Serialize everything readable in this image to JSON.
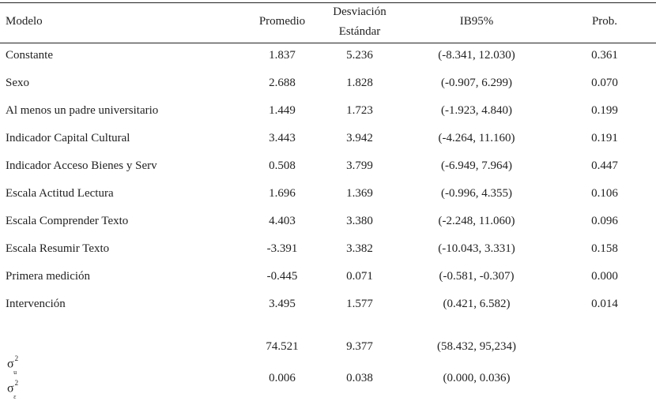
{
  "table": {
    "headers": {
      "model": "Modelo",
      "mean": "Promedio",
      "sd_line1": "Desviación",
      "sd_line2": "Estándar",
      "ci": "IB95%",
      "prob": "Prob."
    },
    "rows": [
      {
        "label": "Constante",
        "mean": "1.837",
        "sd": "5.236",
        "ci": "(-8.341, 12.030)",
        "prob": "0.361"
      },
      {
        "label": "Sexo",
        "mean": "2.688",
        "sd": "1.828",
        "ci": "(-0.907, 6.299)",
        "prob": "0.070"
      },
      {
        "label": "Al menos un padre universitario",
        "mean": "1.449",
        "sd": "1.723",
        "ci": "(-1.923, 4.840)",
        "prob": "0.199"
      },
      {
        "label": "Indicador Capital Cultural",
        "mean": "3.443",
        "sd": "3.942",
        "ci": "(-4.264, 11.160)",
        "prob": "0.191"
      },
      {
        "label": "Indicador Acceso Bienes y Serv",
        "mean": "0.508",
        "sd": "3.799",
        "ci": "(-6.949, 7.964)",
        "prob": "0.447"
      },
      {
        "label": "Escala Actitud Lectura",
        "mean": "1.696",
        "sd": "1.369",
        "ci": "(-0.996, 4.355)",
        "prob": "0.106"
      },
      {
        "label": "Escala Comprender Texto",
        "mean": "4.403",
        "sd": "3.380",
        "ci": "(-2.248, 11.060)",
        "prob": "0.096"
      },
      {
        "label": "Escala Resumir Texto",
        "mean": "-3.391",
        "sd": "3.382",
        "ci": "(-10.043, 3.331)",
        "prob": "0.158"
      },
      {
        "label": "Primera medición",
        "mean": "-0.445",
        "sd": "0.071",
        "ci": "(-0.581, -0.307)",
        "prob": "0.000"
      },
      {
        "label": "Intervención",
        "mean": "3.495",
        "sd": "1.577",
        "ci": "(0.421, 6.582)",
        "prob": "0.014"
      }
    ],
    "variance_rows": [
      {
        "symbol": "σ",
        "sup": "2",
        "sub": "u",
        "mean": "74.521",
        "sd": "9.377",
        "ci": "(58.432, 95,234)"
      },
      {
        "symbol": "σ",
        "sup": "2",
        "sub": "ε",
        "mean": "0.006",
        "sd": "0.038",
        "ci": "(0.000, 0.036)"
      }
    ]
  }
}
